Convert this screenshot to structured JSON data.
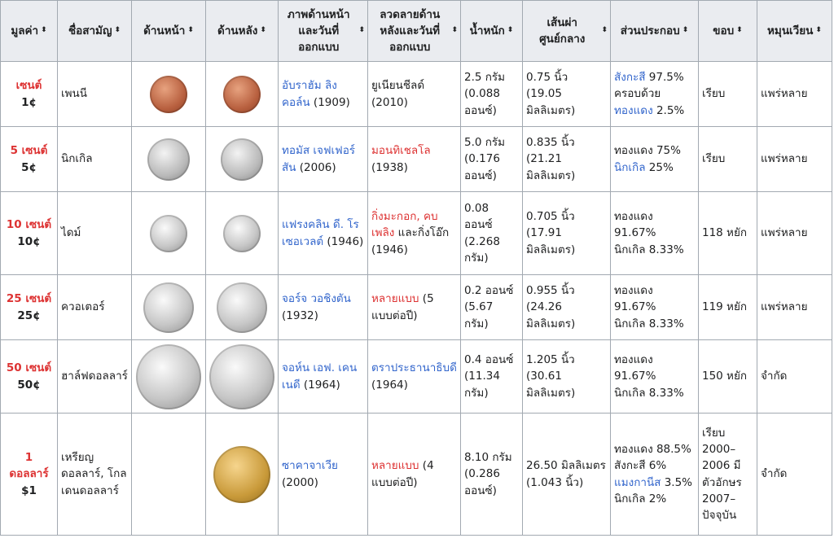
{
  "headers": {
    "value": "มูลค่า",
    "name": "ชื่อสามัญ",
    "obverse": "ด้านหน้า",
    "reverse": "ด้านหลัง",
    "obverse_design": "ภาพด้านหน้าและวันที่ออกแบบ",
    "reverse_design": "ลวดลายด้านหลังและวันที่ออกแบบ",
    "weight": "น้ำหนัก",
    "diameter": "เส้นผ่าศูนย์กลาง",
    "composition": "ส่วนประกอบ",
    "edge": "ขอบ",
    "circulation": "หมุนเวียน"
  },
  "sort_icon": "⬍",
  "rows": [
    {
      "denom_name": "เซนต์",
      "denom_value": "1¢",
      "name": "เพนนี",
      "obverse_icon": "penny-obverse-icon",
      "reverse_icon": "penny-reverse-icon",
      "obverse_link": "อับราฮัม ลิงคอล์น",
      "obverse_rest": " (1909)",
      "reverse_link": "",
      "reverse_rest": "ยูเนียนชีลด์ (2010)",
      "weight": "2.5 กรัม (0.088 ออนซ์)",
      "diameter": "0.75 นิ้ว (19.05 มิลลิเมตร)",
      "comp": [
        {
          "link": "สังกะสี",
          "text": " 97.5% ครอบด้วย"
        },
        {
          "link": "ทองแดง",
          "text": " 2.5%"
        }
      ],
      "edge": "เรียบ",
      "circulation": "แพร่หลาย"
    },
    {
      "denom_name": "5 เซนต์",
      "denom_value": "5¢",
      "name": "นิกเกิล",
      "obverse_icon": "nickel-obverse-icon",
      "reverse_icon": "nickel-reverse-icon",
      "obverse_link": "ทอมัส เจฟเฟอร์สัน",
      "obverse_rest": " (2006)",
      "reverse_link": "มอนทิเชลโล",
      "reverse_rest": " (1938)",
      "weight": "5.0 กรัม (0.176 ออนซ์)",
      "diameter": "0.835 นิ้ว (21.21 มิลลิเมตร)",
      "comp": [
        {
          "link": "",
          "text": "ทองแดง 75%"
        },
        {
          "link": "นิกเกิล",
          "text": " 25%"
        }
      ],
      "edge": "เรียบ",
      "circulation": "แพร่หลาย"
    },
    {
      "denom_name": "10 เซนต์",
      "denom_value": "10¢",
      "name": "ไดม์",
      "obverse_icon": "dime-obverse-icon",
      "reverse_icon": "dime-reverse-icon",
      "obverse_link": "แฟรงคลิน ดี. โรเซอเวลต์",
      "obverse_rest": " (1946)",
      "reverse_link": "กิ่งมะกอก, คบเพลิง",
      "reverse_rest": " และกิ่งโอ๊ก (1946)",
      "weight": "0.08 ออนซ์ (2.268 กรัม)",
      "diameter": "0.705 นิ้ว (17.91 มิลลิเมตร)",
      "comp": [
        {
          "link": "",
          "text": "ทองแดง 91.67%"
        },
        {
          "link": "",
          "text": "นิกเกิล 8.33%"
        }
      ],
      "edge": "118 หยัก",
      "circulation": "แพร่หลาย"
    },
    {
      "denom_name": "25 เซนต์",
      "denom_value": "25¢",
      "name": "ควอเตอร์",
      "obverse_icon": "quarter-obverse-icon",
      "reverse_icon": "quarter-reverse-icon",
      "obverse_link": "จอร์จ วอชิงตัน",
      "obverse_rest": " (1932)",
      "reverse_link": "หลายแบบ",
      "reverse_rest": " (5 แบบต่อปี)",
      "weight": "0.2 ออนซ์ (5.67 กรัม)",
      "diameter": "0.955 นิ้ว (24.26 มิลลิเมตร)",
      "comp": [
        {
          "link": "",
          "text": "ทองแดง 91.67%"
        },
        {
          "link": "",
          "text": "นิกเกิล 8.33%"
        }
      ],
      "edge": "119 หยัก",
      "circulation": "แพร่หลาย"
    },
    {
      "denom_name": "50 เซนต์",
      "denom_value": "50¢",
      "name": "ฮาล์ฟดอลลาร์",
      "obverse_icon": "half-dollar-obverse-icon",
      "reverse_icon": "half-dollar-reverse-icon",
      "obverse_link": "จอห์น เอฟ. เคนเนดี",
      "obverse_rest": " (1964)",
      "reverse_link": "ตราประธานาธิบดี",
      "reverse_rest": " (1964)",
      "weight": "0.4 ออนซ์ (11.34 กรัม)",
      "diameter": "1.205 นิ้ว (30.61 มิลลิเมตร)",
      "comp": [
        {
          "link": "",
          "text": "ทองแดง 91.67%"
        },
        {
          "link": "",
          "text": "นิกเกิล 8.33%"
        }
      ],
      "edge": "150 หยัก",
      "circulation": "จำกัด"
    },
    {
      "denom_name": "1 ดอลลาร์",
      "denom_value": "$1",
      "name": "เหรียญดอลลาร์, โกลเดนดอลลาร์",
      "obverse_icon": "",
      "reverse_icon": "golden-dollar-reverse-icon",
      "obverse_link": "ซาคาจาเวีย",
      "obverse_rest": " (2000)",
      "reverse_link": "หลายแบบ",
      "reverse_rest": " (4 แบบต่อปี)",
      "weight": "8.10 กรัม (0.286 ออนซ์)",
      "diameter": "26.50 มิลลิเมตร (1.043 นิ้ว)",
      "comp": [
        {
          "link": "",
          "text": "ทองแดง 88.5%"
        },
        {
          "link": "",
          "text": "สังกะสี 6%"
        },
        {
          "link": "แมงกานีส",
          "text": " 3.5%"
        },
        {
          "link": "",
          "text": "นิกเกิล 2%"
        }
      ],
      "edge": "เรียบ 2000–2006 มีตัวอักษร 2007–ปัจจุบัน",
      "circulation": "จำกัด"
    }
  ]
}
